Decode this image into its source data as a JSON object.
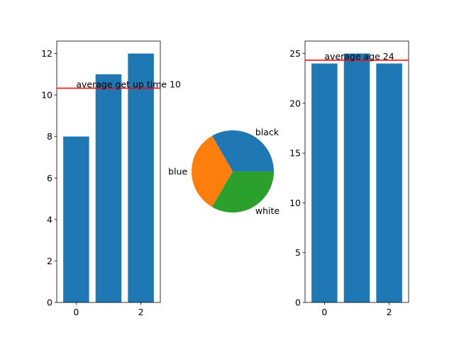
{
  "colors": {
    "bar": "#1f77b4",
    "avg_line": "#ff0000",
    "axis": "#000000",
    "pie": [
      "#1f77b4",
      "#ff7f0e",
      "#2ca02c"
    ]
  },
  "chart_data": [
    {
      "type": "bar",
      "categories": [
        "0",
        "1",
        "2"
      ],
      "x": [
        0,
        1,
        2
      ],
      "values": [
        8,
        11,
        12
      ],
      "ylim": [
        0,
        12.6
      ],
      "yticks": [
        0,
        2,
        4,
        6,
        8,
        10,
        12
      ],
      "xticks": [
        0,
        2
      ],
      "average": {
        "value": 10.33,
        "label": "average get up time 10"
      },
      "grid": false
    },
    {
      "type": "pie",
      "labels": [
        "black",
        "blue",
        "white"
      ],
      "values": [
        1,
        1,
        1
      ]
    },
    {
      "type": "bar",
      "categories": [
        "0",
        "1",
        "2"
      ],
      "x": [
        0,
        1,
        2
      ],
      "values": [
        24,
        25,
        24
      ],
      "ylim": [
        0,
        26.25
      ],
      "yticks": [
        0,
        5,
        10,
        15,
        20,
        25
      ],
      "xticks": [
        0,
        2
      ],
      "average": {
        "value": 24.33,
        "label": "average age 24"
      },
      "grid": false
    }
  ]
}
